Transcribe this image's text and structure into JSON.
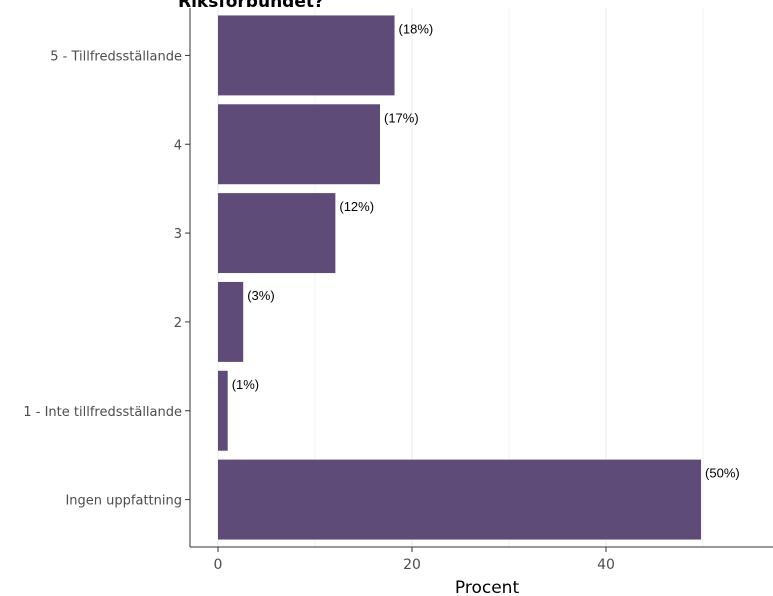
{
  "chart_data": {
    "type": "bar",
    "orientation": "horizontal",
    "title": "Riksförbundet?",
    "xlabel": "Procent",
    "ylabel": "",
    "xlim": [
      -5.5,
      57
    ],
    "x_ticks": [
      0,
      20,
      40
    ],
    "grid": true,
    "bar_color": "#5f4b78",
    "categories": [
      "5 - Tillfredsställande",
      "4",
      "3",
      "2",
      "1 - Inte tillfredsställande",
      "Ingen uppfattning"
    ],
    "values": [
      18.2,
      16.7,
      12.1,
      2.6,
      1.0,
      49.8
    ],
    "data_labels": [
      "(18%)",
      "(17%)",
      "(12%)",
      "(3%)",
      "(1%)",
      "(50%)"
    ]
  }
}
